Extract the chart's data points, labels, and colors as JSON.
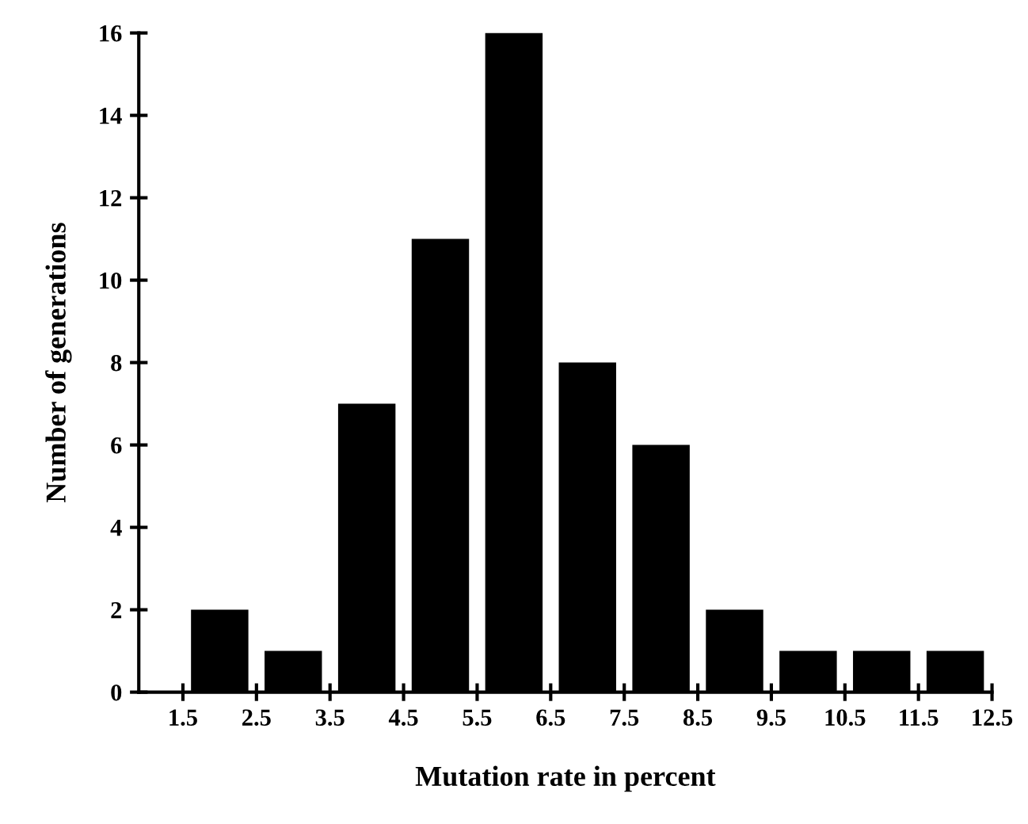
{
  "chart_data": {
    "type": "histogram",
    "xlabel": "Mutation rate in percent",
    "ylabel": "Number of generations",
    "bins": [
      1.5,
      2.5,
      3.5,
      4.5,
      5.5,
      6.5,
      7.5,
      8.5,
      9.5,
      10.5,
      11.5,
      12.5
    ],
    "values": [
      2,
      1,
      7,
      11,
      16,
      8,
      6,
      2,
      1,
      1,
      1
    ],
    "color": "#000000",
    "xlim": [
      0.9,
      12.5
    ],
    "xticks": [
      1.5,
      2.5,
      3.5,
      4.5,
      5.5,
      6.5,
      7.5,
      8.5,
      9.5,
      10.5,
      11.5,
      12.5
    ],
    "ylim": [
      0,
      16
    ],
    "yticks": [
      0,
      2,
      4,
      6,
      8,
      10,
      12,
      14,
      16
    ],
    "grid": false
  }
}
